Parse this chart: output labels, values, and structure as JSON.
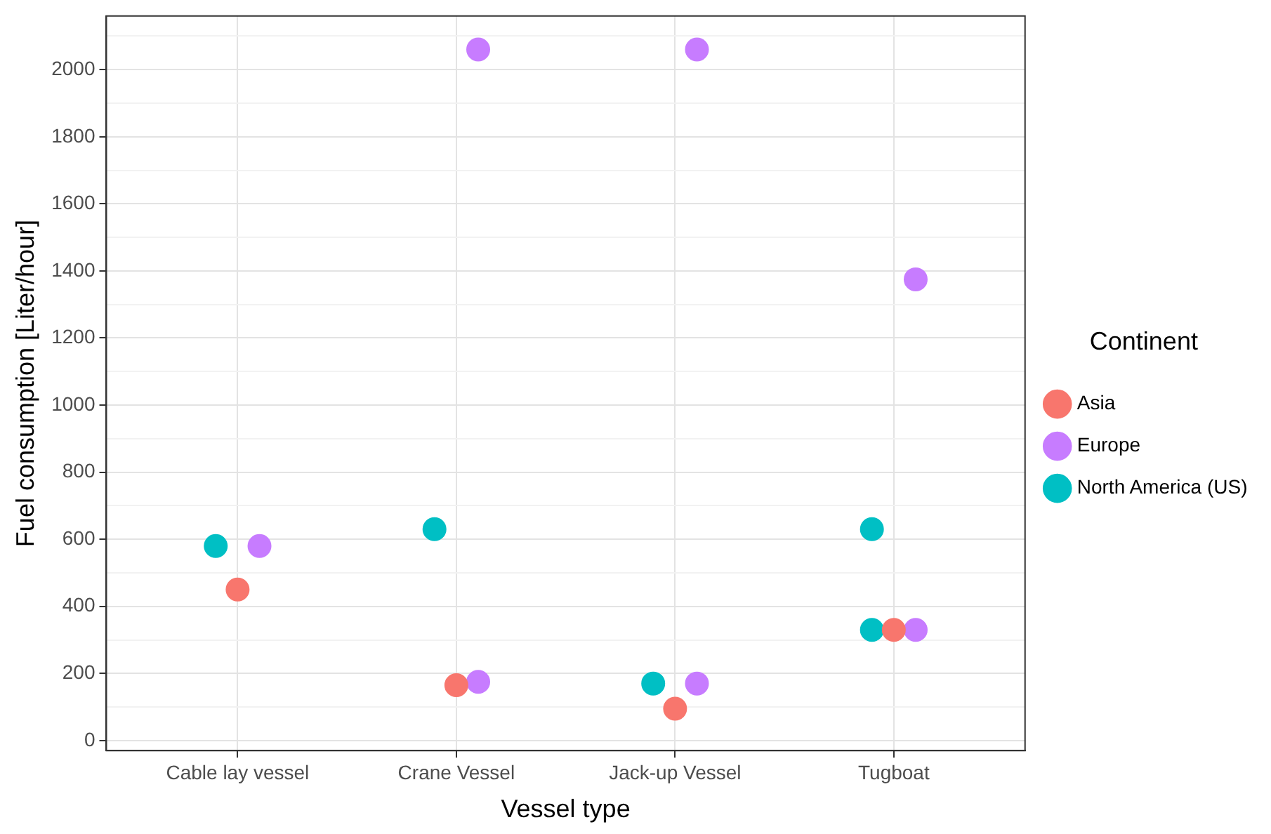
{
  "chart_data": {
    "type": "scatter",
    "xlabel": "Vessel type",
    "ylabel": "Fuel consumption [Liter/hour]",
    "legend_title": "Continent",
    "legend": "right",
    "grid": true,
    "marker": "circle",
    "categories": [
      "Cable lay vessel",
      "Crane Vessel",
      "Jack-up Vessel",
      "Tugboat"
    ],
    "ylim": [
      -30,
      2160
    ],
    "yticks": [
      0,
      {
        "value": 100,
        "label": null
      },
      200,
      {
        "value": 300,
        "label": null
      },
      400,
      {
        "value": 500,
        "label": null
      },
      600,
      {
        "value": 700,
        "label": null
      },
      800,
      {
        "value": 900,
        "label": null
      },
      1000,
      {
        "value": 1100,
        "label": null
      },
      1200,
      {
        "value": 1300,
        "label": null
      },
      1400,
      {
        "value": 1500,
        "label": null
      },
      1600,
      {
        "value": 1700,
        "label": null
      },
      1800,
      {
        "value": 1900,
        "label": null
      },
      2000,
      {
        "value": 2100,
        "label": null
      }
    ],
    "series": [
      {
        "name": "Asia",
        "color": "#f8766d",
        "x": [
          "Cable lay vessel",
          "Crane Vessel",
          "Jack-up Vessel",
          "Tugboat"
        ],
        "values": [
          450,
          165,
          95,
          330
        ]
      },
      {
        "name": "Europe",
        "color": "#c77cff",
        "x": [
          "Cable lay vessel",
          "Crane Vessel",
          "Crane Vessel",
          "Jack-up Vessel",
          "Jack-up Vessel",
          "Tugboat",
          "Tugboat"
        ],
        "values": [
          580,
          2060,
          175,
          2060,
          170,
          1375,
          330
        ]
      },
      {
        "name": "North America (US)",
        "color": "#00bfc4",
        "x": [
          "Cable lay vessel",
          "Crane Vessel",
          "Jack-up Vessel",
          "Tugboat",
          "Tugboat"
        ],
        "values": [
          580,
          630,
          170,
          630,
          330
        ]
      }
    ]
  }
}
